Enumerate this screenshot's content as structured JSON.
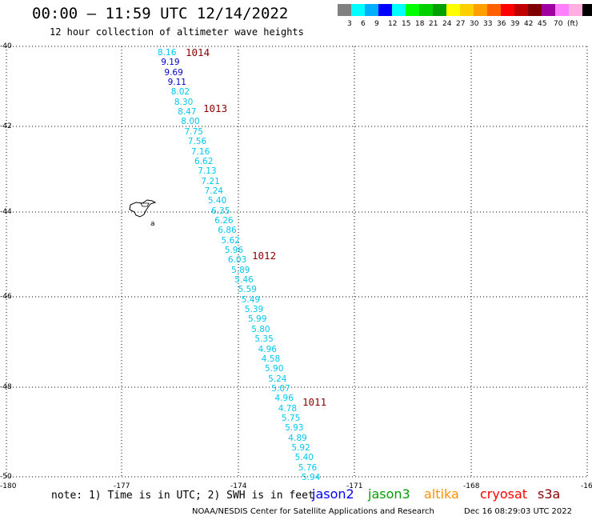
{
  "header": {
    "title": "00:00 – 11:59 UTC 12/14/2022",
    "subtitle": "12 hour collection of altimeter wave heights"
  },
  "colorbar": {
    "colors": [
      "#808080",
      "#00ffff",
      "#00b0ff",
      "#0000ff",
      "#00ffff",
      "#00ff00",
      "#00d000",
      "#00a000",
      "#ffff00",
      "#ffd000",
      "#ffa000",
      "#ff6000",
      "#ff0000",
      "#c00000",
      "#800000",
      "#a000a0",
      "#ff80ff",
      "#ffb0e0",
      "#000000"
    ],
    "labels": [
      "3",
      "6",
      "9",
      "12",
      "15",
      "18",
      "21",
      "24",
      "27",
      "30",
      "33",
      "36",
      "39",
      "42",
      "45",
      "70",
      "(ft)"
    ]
  },
  "axes": {
    "y_labels": [
      "-40",
      "-42",
      "-44",
      "-46",
      "-48",
      "-50"
    ],
    "x_labels": [
      "-180",
      "-177",
      "-174",
      "-171",
      "-168",
      "-16"
    ]
  },
  "map": {
    "lat_range": [
      -50,
      -40
    ],
    "lon_range": [
      -180,
      -165
    ],
    "island_label": "a"
  },
  "wave_heights": [
    {
      "v": "8.16",
      "c": "cyan"
    },
    {
      "v": "9.19",
      "c": "dark"
    },
    {
      "v": "9.69",
      "c": "dark"
    },
    {
      "v": "9.11",
      "c": "dark"
    },
    {
      "v": "8.02",
      "c": "cyan"
    },
    {
      "v": "8.30",
      "c": "cyan"
    },
    {
      "v": "8.47",
      "c": "cyan"
    },
    {
      "v": "8.00",
      "c": "cyan"
    },
    {
      "v": "7.75",
      "c": "cyan"
    },
    {
      "v": "7.56",
      "c": "cyan"
    },
    {
      "v": "7.16",
      "c": "cyan"
    },
    {
      "v": "6.62",
      "c": "cyan"
    },
    {
      "v": "7.13",
      "c": "cyan"
    },
    {
      "v": "7.21",
      "c": "cyan"
    },
    {
      "v": "7.24",
      "c": "cyan"
    },
    {
      "v": "5.40",
      "c": "cyan"
    },
    {
      "v": "6.35",
      "c": "cyan"
    },
    {
      "v": "6.26",
      "c": "cyan"
    },
    {
      "v": "6.86",
      "c": "cyan"
    },
    {
      "v": "5.62",
      "c": "cyan"
    },
    {
      "v": "5.96",
      "c": "cyan"
    },
    {
      "v": "6.03",
      "c": "cyan"
    },
    {
      "v": "5.89",
      "c": "cyan"
    },
    {
      "v": "5.46",
      "c": "cyan"
    },
    {
      "v": "5.59",
      "c": "cyan"
    },
    {
      "v": "5.49",
      "c": "cyan"
    },
    {
      "v": "5.39",
      "c": "cyan"
    },
    {
      "v": "5.99",
      "c": "cyan"
    },
    {
      "v": "5.80",
      "c": "cyan"
    },
    {
      "v": "5.35",
      "c": "cyan"
    },
    {
      "v": "4.96",
      "c": "cyan"
    },
    {
      "v": "4.58",
      "c": "cyan"
    },
    {
      "v": "5.90",
      "c": "cyan"
    },
    {
      "v": "5.24",
      "c": "cyan"
    },
    {
      "v": "5.07",
      "c": "cyan"
    },
    {
      "v": "4.96",
      "c": "cyan"
    },
    {
      "v": "4.78",
      "c": "cyan"
    },
    {
      "v": "5.75",
      "c": "cyan"
    },
    {
      "v": "5.93",
      "c": "cyan"
    },
    {
      "v": "4.89",
      "c": "cyan"
    },
    {
      "v": "5.92",
      "c": "cyan"
    },
    {
      "v": "5.40",
      "c": "cyan"
    },
    {
      "v": "5.76",
      "c": "cyan"
    },
    {
      "v": "5.94",
      "c": "cyan"
    }
  ],
  "pressures": [
    "1014",
    "1013",
    "1012",
    "1011"
  ],
  "note": "note: 1) Time is in UTC; 2) SWH is in feet",
  "legend": [
    {
      "name": "jason2",
      "color": "#0000ff"
    },
    {
      "name": "jason3",
      "color": "#00a000"
    },
    {
      "name": "altika",
      "color": "#ff9000"
    },
    {
      "name": "cryosat",
      "color": "#ff0000"
    },
    {
      "name": "s3a",
      "color": "#8b0000"
    }
  ],
  "footer": {
    "credit": "NOAA/NESDIS Center for Satellite Applications and Research",
    "timestamp": "Dec 16 08:29:03 UTC 2022"
  }
}
